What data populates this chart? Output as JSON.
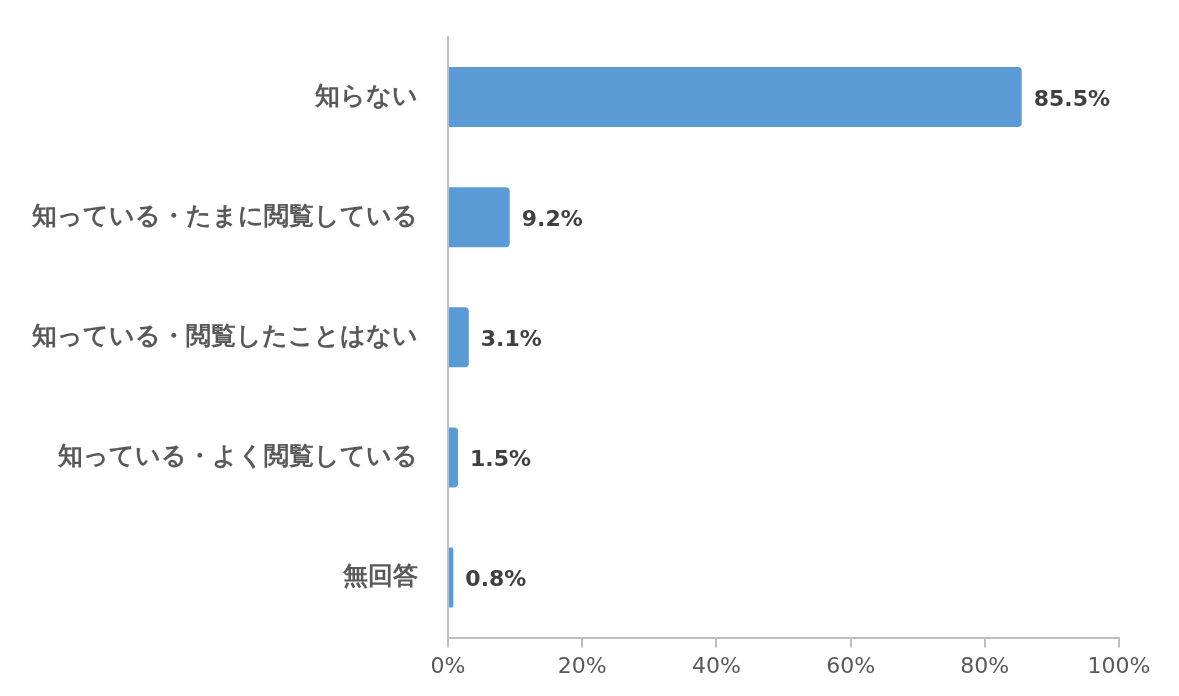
{
  "chart_data": {
    "type": "bar",
    "orientation": "horizontal",
    "categories": [
      "知らない",
      "知っている・たまに閲覧している",
      "知っている・閲覧したことはない",
      "知っている・よく閲覧している",
      "無回答"
    ],
    "values": [
      85.5,
      9.2,
      3.1,
      1.5,
      0.8
    ],
    "value_labels": [
      "85.5%",
      "9.2%",
      "3.1%",
      "1.5%",
      "0.8%"
    ],
    "color": "#5b9bd5",
    "xlim": [
      0,
      100
    ],
    "xticks": [
      {
        "value": 0,
        "label": "0%"
      },
      {
        "value": 20,
        "label": "20%"
      },
      {
        "value": 40,
        "label": "40%"
      },
      {
        "value": 60,
        "label": "60%"
      },
      {
        "value": 80,
        "label": "80%"
      },
      {
        "value": 100,
        "label": "100%"
      }
    ],
    "grid": false,
    "legend": false
  }
}
